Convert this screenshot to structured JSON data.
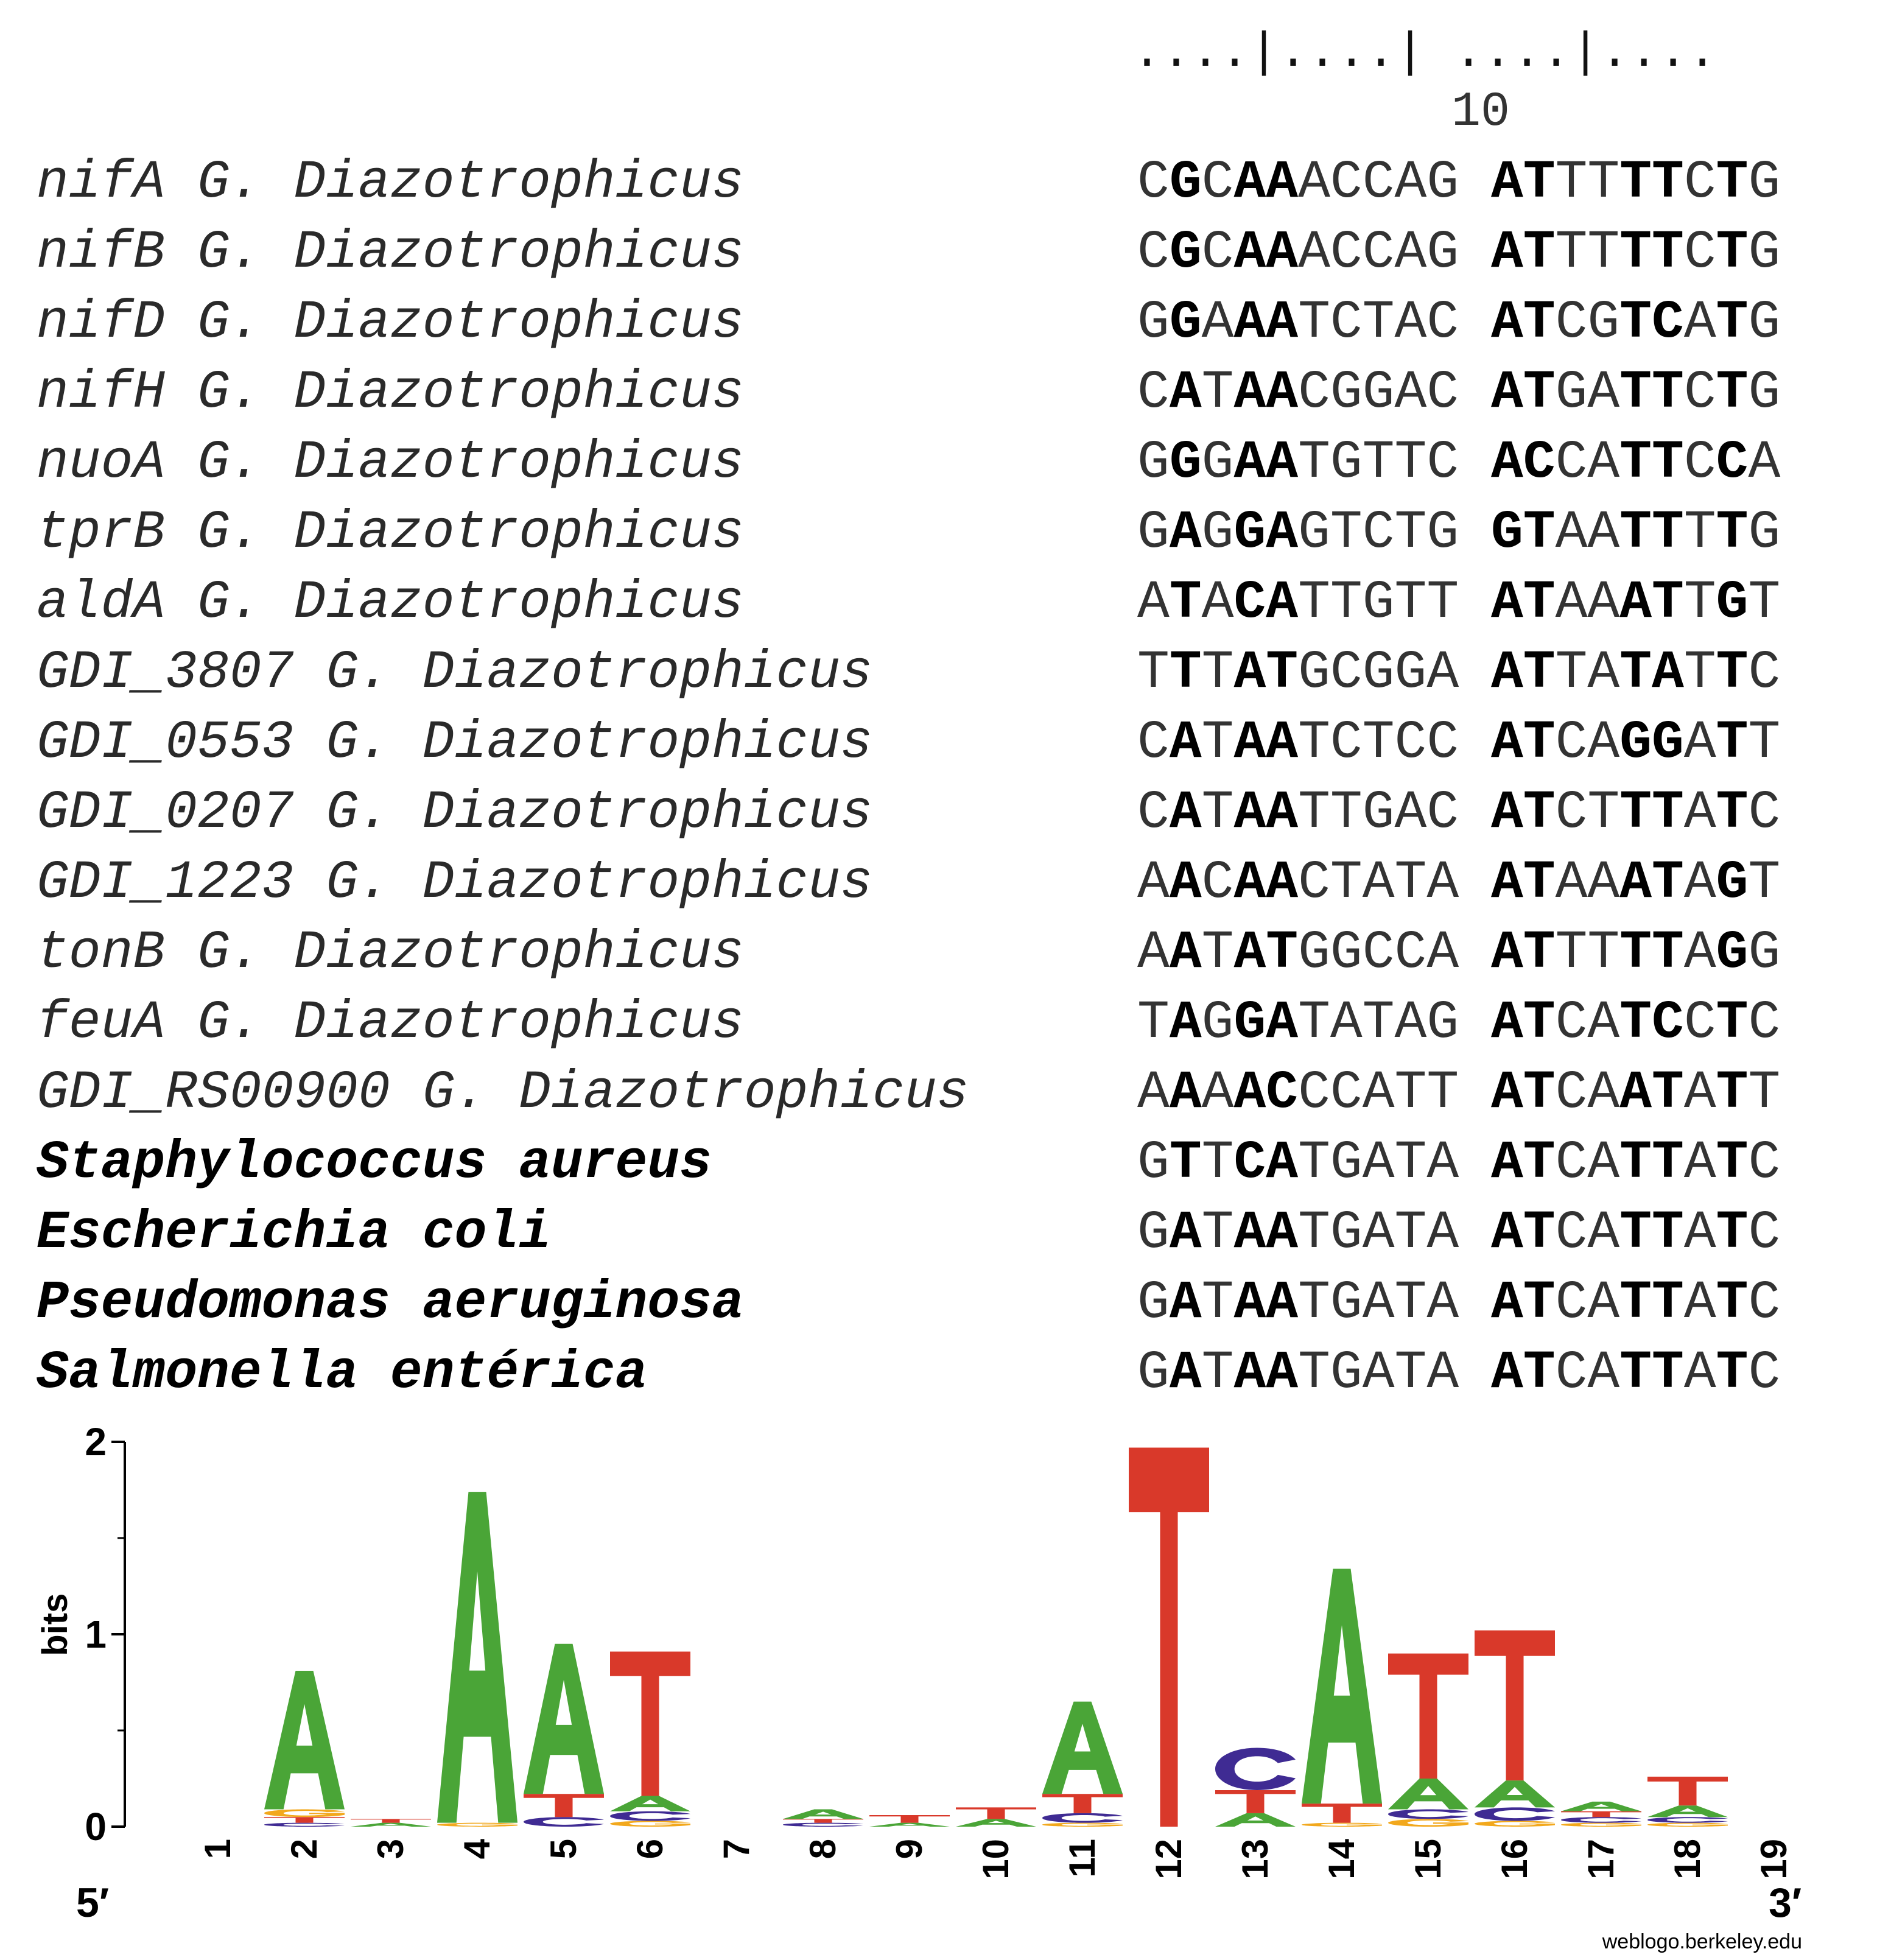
{
  "ruler": {
    "dots": "....|....| ....|....",
    "label": "10"
  },
  "alignment": [
    {
      "gene": "nifA",
      "species": "G. Diazotrophicus",
      "bold": false,
      "left": "CGCAAACCAG",
      "right": "ATTTTTCTG",
      "left_bold": [
        1,
        3,
        4
      ],
      "right_bold": [
        0,
        1,
        4,
        5,
        7
      ]
    },
    {
      "gene": "nifB",
      "species": "G. Diazotrophicus",
      "bold": false,
      "left": "CGCAAACCAG",
      "right": "ATTTTTCTG",
      "left_bold": [
        1,
        3,
        4
      ],
      "right_bold": [
        0,
        1,
        4,
        5,
        7
      ]
    },
    {
      "gene": "nifD",
      "species": "G. Diazotrophicus",
      "bold": false,
      "left": "GGAAATCTAC",
      "right": "ATCGTCATG",
      "left_bold": [
        1,
        3,
        4
      ],
      "right_bold": [
        0,
        1,
        4,
        5,
        7
      ]
    },
    {
      "gene": "nifH",
      "species": "G. Diazotrophicus",
      "bold": false,
      "left": "CATAACGGAC",
      "right": "ATGATTCTG",
      "left_bold": [
        1,
        3,
        4
      ],
      "right_bold": [
        0,
        1,
        4,
        5,
        7
      ]
    },
    {
      "gene": "nuoA",
      "species": "G. Diazotrophicus",
      "bold": false,
      "left": "GGGAATGTTC",
      "right": "ACCATTCCA",
      "left_bold": [
        1,
        3,
        4
      ],
      "right_bold": [
        0,
        1,
        4,
        5,
        7
      ]
    },
    {
      "gene": "tprB",
      "species": "G. Diazotrophicus",
      "bold": false,
      "left": "GAGGAGTCTG",
      "right": "GTAATTTTG",
      "left_bold": [
        1,
        3,
        4
      ],
      "right_bold": [
        0,
        1,
        4,
        5,
        7
      ]
    },
    {
      "gene": "aldA",
      "species": "G. Diazotrophicus",
      "bold": false,
      "left": "ATACATTGTT",
      "right": "ATAAATTGT",
      "left_bold": [
        1,
        3,
        4
      ],
      "right_bold": [
        0,
        1,
        4,
        5,
        7
      ]
    },
    {
      "gene": "GDI_3807",
      "species": "G. Diazotrophicus",
      "bold": false,
      "left": "TTTATGCGGA",
      "right": "ATTATATTC",
      "left_bold": [
        1,
        3,
        4
      ],
      "right_bold": [
        0,
        1,
        4,
        5,
        7
      ]
    },
    {
      "gene": "GDI_0553",
      "species": "G. Diazotrophicus",
      "bold": false,
      "left": "CATAATCTCC",
      "right": "ATCAGGATT",
      "left_bold": [
        1,
        3,
        4
      ],
      "right_bold": [
        0,
        1,
        4,
        5,
        7
      ]
    },
    {
      "gene": "GDI_0207",
      "species": "G. Diazotrophicus",
      "bold": false,
      "left": "CATAATTGAC",
      "right": "ATCTTTATC",
      "left_bold": [
        1,
        3,
        4
      ],
      "right_bold": [
        0,
        1,
        4,
        5,
        7
      ]
    },
    {
      "gene": "GDI_1223",
      "species": "G. Diazotrophicus",
      "bold": false,
      "left": "AACAACTATA",
      "right": "ATAAATAGT",
      "left_bold": [
        1,
        3,
        4
      ],
      "right_bold": [
        0,
        1,
        4,
        5,
        7
      ]
    },
    {
      "gene": "tonB",
      "species": "G. Diazotrophicus",
      "bold": false,
      "left": "AATATGGCCA",
      "right": "ATTTTTAGG",
      "left_bold": [
        1,
        3,
        4
      ],
      "right_bold": [
        0,
        1,
        4,
        5,
        7
      ]
    },
    {
      "gene": "feuA",
      "species": "G. Diazotrophicus",
      "bold": false,
      "left": "TAGGATATAG",
      "right": "ATCATCCTC",
      "left_bold": [
        1,
        3,
        4
      ],
      "right_bold": [
        0,
        1,
        4,
        5,
        7
      ]
    },
    {
      "gene": "GDI_RS00900",
      "species": "G. Diazotrophicus",
      "bold": false,
      "left": "AAAACCCATT",
      "right": "ATCAATATT",
      "left_bold": [
        1,
        3,
        4
      ],
      "right_bold": [
        0,
        1,
        4,
        5,
        7
      ]
    },
    {
      "gene": "",
      "species": "Staphylococcus aureus",
      "bold": true,
      "left": "GTTCATGATA",
      "right": "ATCATTATC",
      "left_bold": [
        1,
        3,
        4
      ],
      "right_bold": [
        0,
        1,
        4,
        5,
        7
      ]
    },
    {
      "gene": "",
      "species": "Escherichia coli",
      "bold": true,
      "left": "GATAATGATA",
      "right": "ATCATTATC",
      "left_bold": [
        1,
        3,
        4
      ],
      "right_bold": [
        0,
        1,
        4,
        5,
        7
      ]
    },
    {
      "gene": "",
      "species": "Pseudomonas aeruginosa",
      "bold": true,
      "left": "GATAATGATA",
      "right": "ATCATTATC",
      "left_bold": [
        1,
        3,
        4
      ],
      "right_bold": [
        0,
        1,
        4,
        5,
        7
      ]
    },
    {
      "gene": "",
      "species": "Salmonella entérica",
      "bold": true,
      "left": "GATAATGATA",
      "right": "ATCATTATC",
      "left_bold": [
        1,
        3,
        4
      ],
      "right_bold": [
        0,
        1,
        4,
        5,
        7
      ]
    }
  ],
  "logo": {
    "ylabel": "bits",
    "ymax": 2,
    "yticks": [
      "0",
      "1",
      "2"
    ],
    "five_prime": "5′",
    "three_prime": "3′",
    "credit": "weblogo.berkeley.edu",
    "colors": {
      "A": "#4aa537",
      "C": "#3f2b93",
      "G": "#f2a81d",
      "T": "#d9392a"
    },
    "positions": [
      {
        "pos": "1",
        "stack": []
      },
      {
        "pos": "2",
        "stack": [
          {
            "b": "C",
            "h": 0.02
          },
          {
            "b": "T",
            "h": 0.03
          },
          {
            "b": "G",
            "h": 0.04
          },
          {
            "b": "A",
            "h": 0.72
          }
        ]
      },
      {
        "pos": "3",
        "stack": [
          {
            "b": "A",
            "h": 0.02
          },
          {
            "b": "T",
            "h": 0.02
          }
        ]
      },
      {
        "pos": "4",
        "stack": [
          {
            "b": "G",
            "h": 0.02
          },
          {
            "b": "A",
            "h": 1.72
          }
        ]
      },
      {
        "pos": "5",
        "stack": [
          {
            "b": "C",
            "h": 0.05
          },
          {
            "b": "T",
            "h": 0.12
          },
          {
            "b": "A",
            "h": 0.78
          }
        ]
      },
      {
        "pos": "6",
        "stack": [
          {
            "b": "G",
            "h": 0.03
          },
          {
            "b": "C",
            "h": 0.05
          },
          {
            "b": "A",
            "h": 0.08
          },
          {
            "b": "T",
            "h": 0.75
          }
        ]
      },
      {
        "pos": "7",
        "stack": []
      },
      {
        "pos": "8",
        "stack": [
          {
            "b": "C",
            "h": 0.02
          },
          {
            "b": "T",
            "h": 0.02
          },
          {
            "b": "A",
            "h": 0.05
          }
        ]
      },
      {
        "pos": "9",
        "stack": [
          {
            "b": "A",
            "h": 0.02
          },
          {
            "b": "T",
            "h": 0.04
          }
        ]
      },
      {
        "pos": "10",
        "stack": [
          {
            "b": "A",
            "h": 0.04
          },
          {
            "b": "T",
            "h": 0.06
          }
        ]
      },
      {
        "pos": "11",
        "stack": [
          {
            "b": "G",
            "h": 0.02
          },
          {
            "b": "C",
            "h": 0.05
          },
          {
            "b": "T",
            "h": 0.1
          },
          {
            "b": "A",
            "h": 0.48
          }
        ]
      },
      {
        "pos": "12",
        "stack": [
          {
            "b": "T",
            "h": 1.97
          }
        ]
      },
      {
        "pos": "13",
        "stack": [
          {
            "b": "A",
            "h": 0.07
          },
          {
            "b": "T",
            "h": 0.12
          },
          {
            "b": "C",
            "h": 0.22
          }
        ]
      },
      {
        "pos": "14",
        "stack": [
          {
            "b": "G",
            "h": 0.02
          },
          {
            "b": "T",
            "h": 0.1
          },
          {
            "b": "A",
            "h": 1.22
          }
        ]
      },
      {
        "pos": "15",
        "stack": [
          {
            "b": "G",
            "h": 0.04
          },
          {
            "b": "C",
            "h": 0.05
          },
          {
            "b": "A",
            "h": 0.16
          },
          {
            "b": "T",
            "h": 0.65
          }
        ]
      },
      {
        "pos": "16",
        "stack": [
          {
            "b": "G",
            "h": 0.03
          },
          {
            "b": "C",
            "h": 0.07
          },
          {
            "b": "A",
            "h": 0.14
          },
          {
            "b": "T",
            "h": 0.78
          }
        ]
      },
      {
        "pos": "17",
        "stack": [
          {
            "b": "G",
            "h": 0.02
          },
          {
            "b": "C",
            "h": 0.03
          },
          {
            "b": "T",
            "h": 0.03
          },
          {
            "b": "A",
            "h": 0.05
          }
        ]
      },
      {
        "pos": "18",
        "stack": [
          {
            "b": "G",
            "h": 0.02
          },
          {
            "b": "C",
            "h": 0.03
          },
          {
            "b": "A",
            "h": 0.06
          },
          {
            "b": "T",
            "h": 0.15
          }
        ]
      },
      {
        "pos": "19",
        "stack": []
      }
    ]
  }
}
